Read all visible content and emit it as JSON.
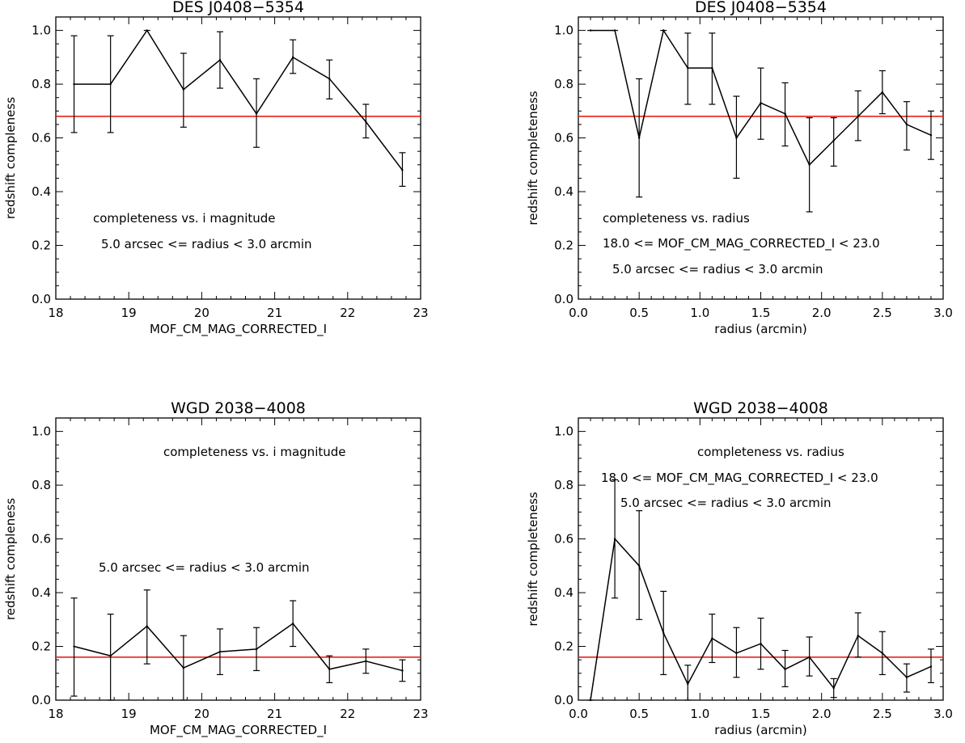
{
  "colors": {
    "reference_line": "#e8231a",
    "series": "#000000",
    "background": "#ffffff"
  },
  "chart_data": [
    {
      "type": "line",
      "title": "DES J0408−5354",
      "xlabel": "MOF_CM_MAG_CORRECTED_I",
      "ylabel": "redshift compleness",
      "xlim": [
        18,
        23
      ],
      "ylim": [
        0,
        1.05
      ],
      "xticks": [
        "18",
        "19",
        "20",
        "21",
        "22",
        "23"
      ],
      "yticks": [
        "0.0",
        "0.2",
        "0.4",
        "0.6",
        "0.8",
        "1.0"
      ],
      "reference_line": 0.68,
      "x": [
        18.25,
        18.75,
        19.25,
        19.75,
        20.25,
        20.75,
        21.25,
        21.75,
        22.25,
        22.75
      ],
      "y": [
        0.8,
        0.8,
        1.0,
        0.78,
        0.89,
        0.69,
        0.9,
        0.82,
        0.66,
        0.48
      ],
      "err_low": [
        0.62,
        0.62,
        1.0,
        0.64,
        0.785,
        0.565,
        0.84,
        0.745,
        0.6,
        0.42
      ],
      "err_high": [
        0.98,
        0.98,
        1.0,
        0.915,
        0.995,
        0.82,
        0.965,
        0.89,
        0.725,
        0.545
      ],
      "annotations": [
        "completeness vs. i magnitude",
        "5.0 arcsec <= radius <  3.0 arcmin"
      ]
    },
    {
      "type": "line",
      "title": "DES J0408−5354",
      "xlabel": "radius (arcmin)",
      "ylabel": "redshift completeness",
      "xlim": [
        0.0,
        3.0
      ],
      "ylim": [
        0,
        1.05
      ],
      "xticks": [
        "0.0",
        "0.5",
        "1.0",
        "1.5",
        "2.0",
        "2.5",
        "3.0"
      ],
      "yticks": [
        "0.0",
        "0.2",
        "0.4",
        "0.6",
        "0.8",
        "1.0"
      ],
      "reference_line": 0.68,
      "x": [
        0.1,
        0.3,
        0.5,
        0.7,
        0.9,
        1.1,
        1.3,
        1.5,
        1.7,
        1.9,
        2.1,
        2.3,
        2.5,
        2.7,
        2.9
      ],
      "y": [
        1.0,
        1.0,
        0.6,
        1.0,
        0.86,
        0.86,
        0.6,
        0.73,
        0.69,
        0.5,
        0.59,
        0.68,
        0.77,
        0.65,
        0.61
      ],
      "err_low": [
        1.0,
        1.0,
        0.38,
        1.0,
        0.725,
        0.725,
        0.45,
        0.595,
        0.57,
        0.325,
        0.495,
        0.59,
        0.69,
        0.555,
        0.52
      ],
      "err_high": [
        1.0,
        1.0,
        0.82,
        1.0,
        0.99,
        0.99,
        0.755,
        0.86,
        0.805,
        0.675,
        0.675,
        0.775,
        0.85,
        0.735,
        0.7
      ],
      "annotations": [
        "completeness vs. radius",
        "18.0 <= MOF_CM_MAG_CORRECTED_I < 23.0",
        "5.0 arcsec <= radius <  3.0 arcmin"
      ]
    },
    {
      "type": "line",
      "title": "WGD 2038−4008",
      "xlabel": "MOF_CM_MAG_CORRECTED_I",
      "ylabel": "redshift compleness",
      "xlim": [
        18,
        23
      ],
      "ylim": [
        0,
        1.05
      ],
      "xticks": [
        "18",
        "19",
        "20",
        "21",
        "22",
        "23"
      ],
      "yticks": [
        "0.0",
        "0.2",
        "0.4",
        "0.6",
        "0.8",
        "1.0"
      ],
      "reference_line": 0.16,
      "x": [
        18.25,
        18.75,
        19.25,
        19.75,
        20.25,
        20.75,
        21.25,
        21.75,
        22.25,
        22.75
      ],
      "y": [
        0.2,
        0.165,
        0.275,
        0.12,
        0.18,
        0.19,
        0.285,
        0.115,
        0.145,
        0.11
      ],
      "err_low": [
        0.015,
        0.0,
        0.135,
        0.0,
        0.095,
        0.11,
        0.2,
        0.065,
        0.1,
        0.07
      ],
      "err_high": [
        0.38,
        0.32,
        0.41,
        0.24,
        0.265,
        0.27,
        0.37,
        0.165,
        0.19,
        0.15
      ],
      "annotations": [
        "completeness vs. i magnitude",
        "5.0 arcsec <= radius <  3.0 arcmin"
      ]
    },
    {
      "type": "line",
      "title": "WGD 2038−4008",
      "xlabel": "radius (arcmin)",
      "ylabel": "redshift completeness",
      "xlim": [
        0.0,
        3.0
      ],
      "ylim": [
        0,
        1.05
      ],
      "xticks": [
        "0.0",
        "0.5",
        "1.0",
        "1.5",
        "2.0",
        "2.5",
        "3.0"
      ],
      "yticks": [
        "0.0",
        "0.2",
        "0.4",
        "0.6",
        "0.8",
        "1.0"
      ],
      "reference_line": 0.16,
      "x": [
        0.1,
        0.3,
        0.5,
        0.7,
        0.9,
        1.1,
        1.3,
        1.5,
        1.7,
        1.9,
        2.1,
        2.3,
        2.5,
        2.7,
        2.9
      ],
      "y": [
        0.0,
        0.6,
        0.5,
        0.25,
        0.06,
        0.23,
        0.175,
        0.21,
        0.115,
        0.16,
        0.045,
        0.24,
        0.175,
        0.085,
        0.125
      ],
      "err_low": [
        0.0,
        0.38,
        0.3,
        0.095,
        0.0,
        0.14,
        0.085,
        0.115,
        0.05,
        0.09,
        0.01,
        0.16,
        0.095,
        0.03,
        0.065
      ],
      "err_high": [
        0.0,
        0.82,
        0.705,
        0.405,
        0.13,
        0.32,
        0.27,
        0.305,
        0.185,
        0.235,
        0.08,
        0.325,
        0.255,
        0.135,
        0.19
      ],
      "annotations": [
        "completeness vs. radius",
        "18.0 <= MOF_CM_MAG_CORRECTED_I < 23.0",
        "5.0 arcsec <= radius <  3.0 arcmin"
      ]
    }
  ]
}
